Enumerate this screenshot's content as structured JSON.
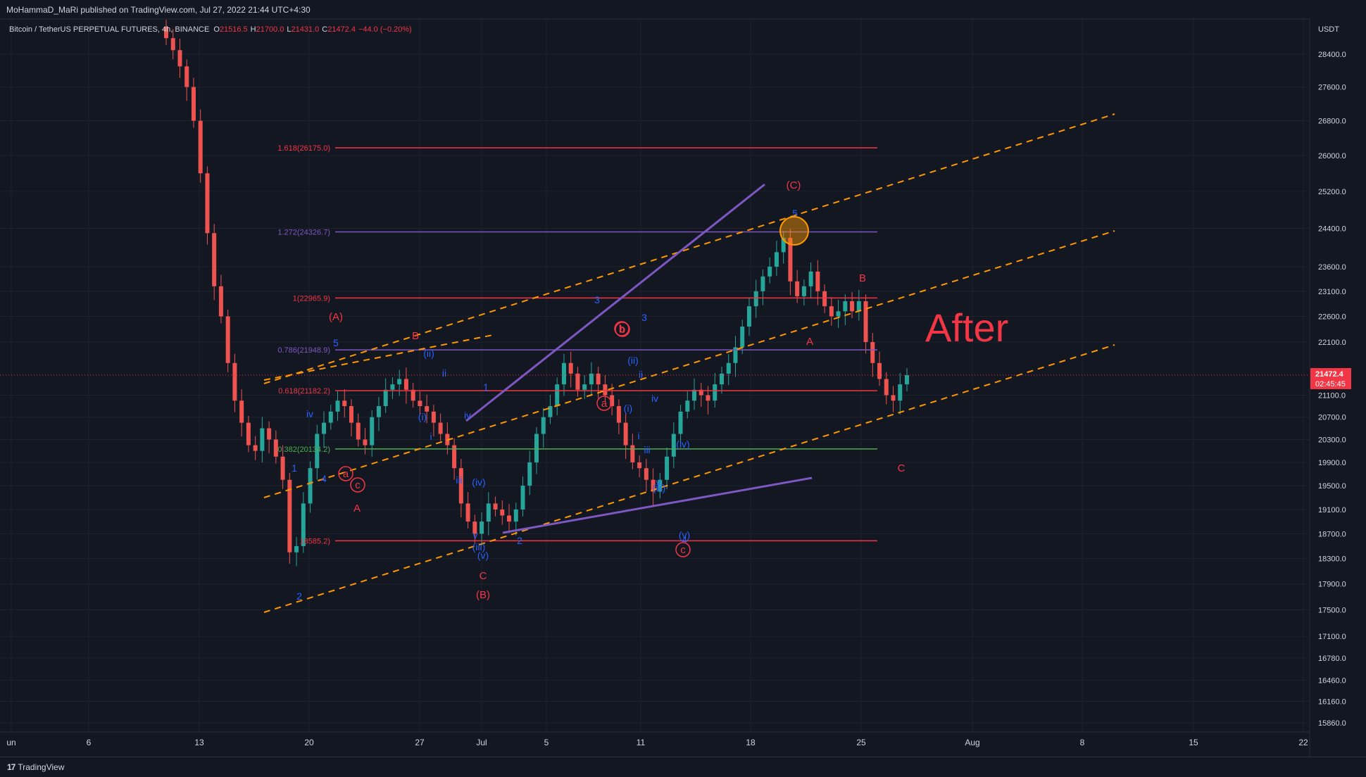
{
  "header": {
    "publisher": "MoHammaD_MaRi published on TradingView.com, Jul 27, 2022 21:44 UTC+4:30"
  },
  "symbol_line": {
    "symbol": "Bitcoin / TetherUS PERPETUAL FUTURES",
    "interval": "4h",
    "exchange": "BINANCE",
    "o_label": "O",
    "o_value": "21516.5",
    "h_label": "H",
    "h_value": "21700.0",
    "l_label": "L",
    "l_value": "21431.0",
    "c_label": "C",
    "c_value": "21472.4",
    "change": "−44.0 (−0.20%)"
  },
  "footer": {
    "brand": "TradingView"
  },
  "colors": {
    "background": "#131722",
    "grid": "#1e222d",
    "up": "#26a69a",
    "down": "#ef5350",
    "fib_red": "#f23645",
    "fib_purple": "#7e57c2",
    "fib_green": "#4caf50",
    "channel": "#ff9800",
    "trendline": "#7e57c2",
    "wave_blue": "#2962ff",
    "wave_red": "#f23645",
    "price_badge": "#f23645"
  },
  "chart_data": {
    "type": "candlestick",
    "currency": "USDT",
    "y_ticks": [
      "28400.0",
      "27600.0",
      "26800.0",
      "26000.0",
      "25200.0",
      "24400.0",
      "23600.0",
      "23100.0",
      "22600.0",
      "22100.0",
      "21100.0",
      "20700.0",
      "20300.0",
      "19900.0",
      "19500.0",
      "19100.0",
      "18700.0",
      "18300.0",
      "17900.0",
      "17500.0",
      "17100.0",
      "16780.0",
      "16460.0",
      "16160.0",
      "15860.0"
    ],
    "ylim": [
      15860.0,
      28800.0
    ],
    "log_scale": true,
    "x_ticks": [
      "un",
      "6",
      "13",
      "20",
      "27",
      "Jul",
      "5",
      "11",
      "18",
      "25",
      "Aug",
      "8",
      "15",
      "22"
    ],
    "last_price": {
      "value": "21472.4",
      "countdown": "02:45:45"
    },
    "closes": [
      28800,
      28500,
      28100,
      27600,
      26800,
      25600,
      24300,
      23200,
      22600,
      21700,
      21000,
      20600,
      20200,
      20100,
      20500,
      20300,
      20000,
      19600,
      18400,
      18500,
      19200,
      19800,
      20400,
      20600,
      20800,
      21000,
      20900,
      20600,
      20300,
      20200,
      20700,
      20900,
      21200,
      21300,
      21400,
      21200,
      21000,
      20900,
      20800,
      20600,
      20400,
      20200,
      19800,
      19200,
      18900,
      18700,
      18900,
      19200,
      19100,
      19000,
      18900,
      19100,
      19500,
      19900,
      20400,
      20700,
      20900,
      21300,
      21700,
      21500,
      21200,
      21300,
      21500,
      21300,
      21100,
      20900,
      20600,
      20200,
      19900,
      19800,
      19600,
      19400,
      19600,
      20000,
      20400,
      20800,
      21000,
      21200,
      21100,
      21000,
      21300,
      21500,
      21700,
      22000,
      22400,
      22800,
      23100,
      23400,
      23600,
      23900,
      24200,
      23300,
      23000,
      23200,
      23500,
      23100,
      22800,
      22600,
      22700,
      22900,
      22700,
      22900,
      22100,
      21700,
      21400,
      21100,
      21000,
      21300,
      21472
    ]
  },
  "fib_levels": [
    {
      "label": "1.618(26175.0)",
      "value": 26175.0,
      "color": "#f23645"
    },
    {
      "label": "1.272(24326.7)",
      "value": 24326.7,
      "color": "#7e57c2"
    },
    {
      "label": "1(22965.9)",
      "value": 22965.9,
      "color": "#f23645"
    },
    {
      "label": "0.786(21948.9)",
      "value": 21948.9,
      "color": "#7e57c2"
    },
    {
      "label": "0.618(21182.2)",
      "value": 21182.2,
      "color": "#f23645"
    },
    {
      "label": "0.382(20134.2)",
      "value": 20134.2,
      "color": "#4caf50"
    },
    {
      "label": "18585.2)",
      "value": 18585.2,
      "color": "#f23645"
    }
  ],
  "wave_labels": [
    {
      "text": "(A)",
      "color": "red"
    },
    {
      "text": "5",
      "color": "blue"
    },
    {
      "text": "B",
      "color": "red"
    },
    {
      "text": "(ii)",
      "color": "blue"
    },
    {
      "text": "ii",
      "color": "blue"
    },
    {
      "text": "3",
      "color": "blue"
    },
    {
      "text": "b",
      "color": "red",
      "circle": true
    },
    {
      "text": "(i)",
      "color": "blue"
    },
    {
      "text": "i",
      "color": "blue"
    },
    {
      "text": "1",
      "color": "blue"
    },
    {
      "text": "iv",
      "color": "blue"
    },
    {
      "text": "4",
      "color": "blue"
    },
    {
      "text": "a",
      "color": "red",
      "circle": true
    },
    {
      "text": "c",
      "color": "red",
      "circle": true
    },
    {
      "text": "A",
      "color": "red"
    },
    {
      "text": "2",
      "color": "blue"
    },
    {
      "text": "1",
      "color": "blue"
    },
    {
      "text": "iv",
      "color": "blue"
    },
    {
      "text": "iii",
      "color": "blue"
    },
    {
      "text": "(iv)",
      "color": "blue"
    },
    {
      "text": "v",
      "color": "blue"
    },
    {
      "text": "(iii)",
      "color": "blue"
    },
    {
      "text": "(v)",
      "color": "blue"
    },
    {
      "text": "C",
      "color": "red"
    },
    {
      "text": "(B)",
      "color": "red"
    },
    {
      "text": "2",
      "color": "blue"
    },
    {
      "text": "3",
      "color": "blue"
    },
    {
      "text": "b",
      "color": "red",
      "circle": true
    },
    {
      "text": "(ii)",
      "color": "blue"
    },
    {
      "text": "ii",
      "color": "blue"
    },
    {
      "text": "a",
      "color": "red",
      "circle": true
    },
    {
      "text": "(i)",
      "color": "blue"
    },
    {
      "text": "iv",
      "color": "blue"
    },
    {
      "text": "i",
      "color": "blue"
    },
    {
      "text": "iii",
      "color": "blue"
    },
    {
      "text": "(iv)",
      "color": "blue"
    },
    {
      "text": "v",
      "color": "blue"
    },
    {
      "text": "(iii)",
      "color": "blue"
    },
    {
      "text": "(v)",
      "color": "blue"
    },
    {
      "text": "4",
      "color": "blue"
    },
    {
      "text": "c",
      "color": "red",
      "circle": true
    },
    {
      "text": "(C)",
      "color": "red"
    },
    {
      "text": "5",
      "color": "blue"
    },
    {
      "text": "B",
      "color": "red"
    },
    {
      "text": "A",
      "color": "red"
    },
    {
      "text": "C",
      "color": "red"
    }
  ],
  "annotation": {
    "text": "After"
  }
}
